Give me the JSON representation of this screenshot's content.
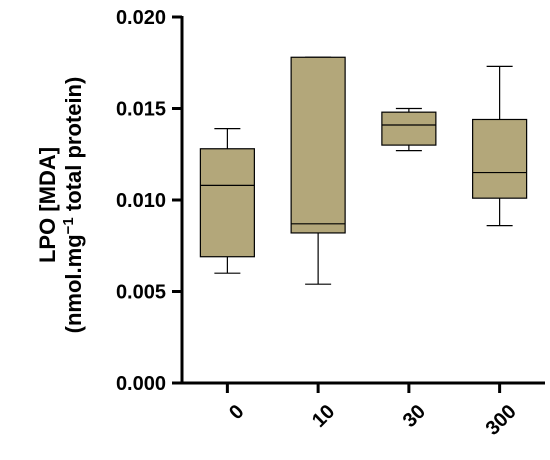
{
  "chart_data": {
    "type": "box",
    "title": "",
    "ylabel_line1": "LPO [MDA]",
    "ylabel_line2_prefix": "(nmol.mg",
    "ylabel_line2_sup": "−1",
    "ylabel_line2_suffix": " total protein)",
    "xlabel": "",
    "ylim": [
      0,
      0.02
    ],
    "yticks": [
      0.0,
      0.005,
      0.01,
      0.015,
      0.02
    ],
    "ytick_labels": [
      "0.000",
      "0.005",
      "0.010",
      "0.015",
      "0.020"
    ],
    "categories": [
      "0",
      "10",
      "30",
      "300"
    ],
    "boxes": [
      {
        "category": "0",
        "min": 0.006,
        "q1": 0.0069,
        "median": 0.0108,
        "q3": 0.0128,
        "max": 0.0139
      },
      {
        "category": "10",
        "min": 0.0054,
        "q1": 0.0082,
        "median": 0.0087,
        "q3": 0.0178,
        "max": 0.0178
      },
      {
        "category": "30",
        "min": 0.0127,
        "q1": 0.013,
        "median": 0.0141,
        "q3": 0.0148,
        "max": 0.015
      },
      {
        "category": "300",
        "min": 0.0086,
        "q1": 0.0101,
        "median": 0.0115,
        "q3": 0.0144,
        "max": 0.0173
      }
    ],
    "box_color": "#b3a77a",
    "line_color": "#000000",
    "grid": false,
    "legend": "none"
  }
}
